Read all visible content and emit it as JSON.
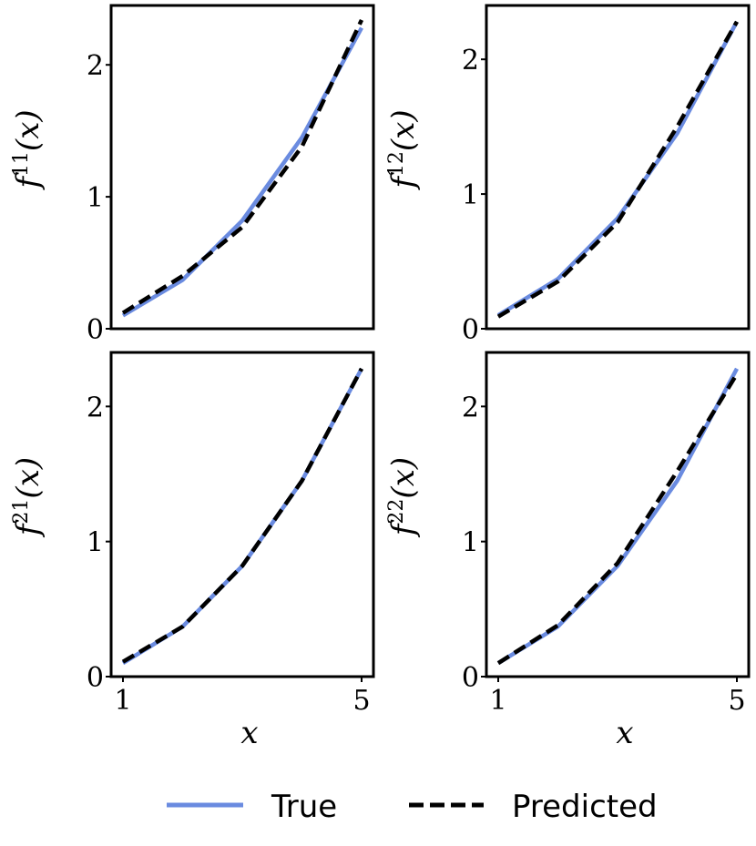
{
  "colors": {
    "true_line": "#6a8be0",
    "predicted_line": "#000000",
    "frame": "#000000"
  },
  "legend": {
    "true_label": "True",
    "predicted_label": "Predicted",
    "placement": "bottom-center"
  },
  "chart_data": [
    {
      "type": "line",
      "ylabel": "f11(x)",
      "ylabel_base": "f",
      "ylabel_sup": "11",
      "ylabel_tail": "(x)",
      "xlabel": "",
      "xlim": [
        1,
        5
      ],
      "ylim": [
        0,
        2.45
      ],
      "xticks": [],
      "yticks": [
        0,
        1,
        2
      ],
      "x": [
        1,
        2,
        3,
        4,
        5
      ],
      "series": [
        {
          "name": "True",
          "values": [
            0.1,
            0.37,
            0.82,
            1.45,
            2.28
          ]
        },
        {
          "name": "Predicted",
          "values": [
            0.12,
            0.4,
            0.77,
            1.38,
            2.34
          ]
        }
      ]
    },
    {
      "type": "line",
      "ylabel": "f12(x)",
      "ylabel_base": "f",
      "ylabel_sup": "12",
      "ylabel_tail": "(x)",
      "xlabel": "",
      "xlim": [
        1,
        5
      ],
      "ylim": [
        0,
        2.4
      ],
      "xticks": [],
      "yticks": [
        0,
        1,
        2
      ],
      "x": [
        1,
        2,
        3,
        4,
        5
      ],
      "series": [
        {
          "name": "True",
          "values": [
            0.1,
            0.37,
            0.82,
            1.45,
            2.28
          ]
        },
        {
          "name": "Predicted",
          "values": [
            0.09,
            0.35,
            0.79,
            1.5,
            2.28
          ]
        }
      ]
    },
    {
      "type": "line",
      "ylabel": "f21(x)",
      "ylabel_base": "f",
      "ylabel_sup": "21",
      "ylabel_tail": "(x)",
      "xlabel": "x",
      "xlim": [
        1,
        5
      ],
      "ylim": [
        0,
        2.4
      ],
      "xticks": [
        1,
        5
      ],
      "yticks": [
        0,
        1,
        2
      ],
      "x": [
        1,
        2,
        3,
        4,
        5
      ],
      "series": [
        {
          "name": "True",
          "values": [
            0.1,
            0.37,
            0.82,
            1.45,
            2.28
          ]
        },
        {
          "name": "Predicted",
          "values": [
            0.11,
            0.37,
            0.82,
            1.45,
            2.28
          ]
        }
      ]
    },
    {
      "type": "line",
      "ylabel": "f22(x)",
      "ylabel_base": "f",
      "ylabel_sup": "22",
      "ylabel_tail": "(x)",
      "xlabel": "x",
      "xlim": [
        1,
        5
      ],
      "ylim": [
        0,
        2.4
      ],
      "xticks": [
        1,
        5
      ],
      "yticks": [
        0,
        1,
        2
      ],
      "x": [
        1,
        2,
        3,
        4,
        5
      ],
      "series": [
        {
          "name": "True",
          "values": [
            0.1,
            0.37,
            0.82,
            1.45,
            2.28
          ]
        },
        {
          "name": "Predicted",
          "values": [
            0.1,
            0.38,
            0.84,
            1.52,
            2.24
          ]
        }
      ]
    }
  ]
}
